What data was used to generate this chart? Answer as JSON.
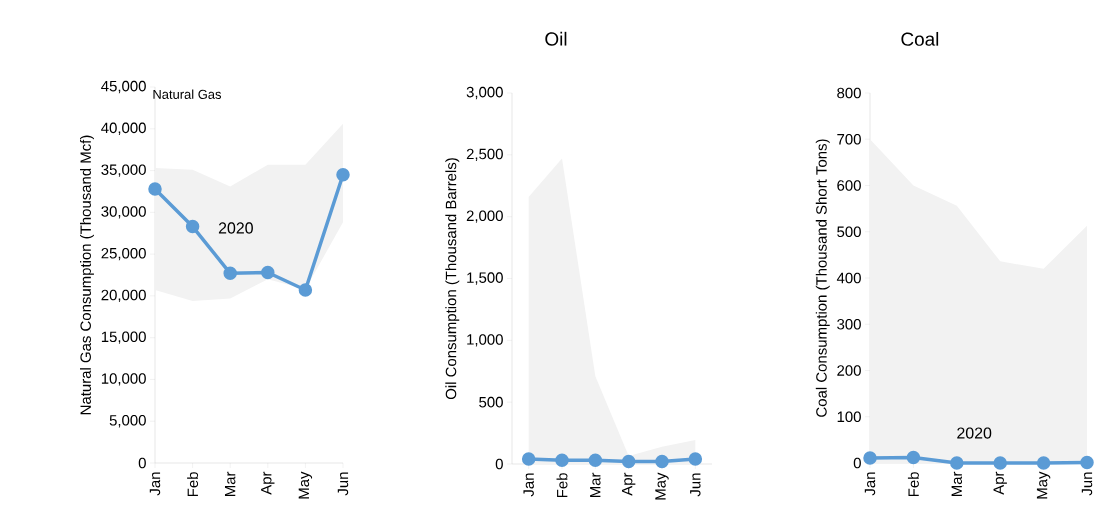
{
  "chart_data": [
    {
      "type": "line",
      "title": "Natural Gas",
      "ylabel": "Natural Gas Consumption (Thousand Mcf)",
      "categories": [
        "Jan",
        "Feb",
        "Mar",
        "Apr",
        "May",
        "Jun"
      ],
      "marker": "circle",
      "ylim": [
        0,
        45000
      ],
      "yticks": [
        {
          "value": 0,
          "label": "0"
        },
        {
          "value": 5000,
          "label": "5,000"
        },
        {
          "value": 10000,
          "label": "10,000"
        },
        {
          "value": 15000,
          "label": "15,000"
        },
        {
          "value": 20000,
          "label": "20,000"
        },
        {
          "value": 25000,
          "label": "25,000"
        },
        {
          "value": 30000,
          "label": "30,000"
        },
        {
          "value": 35000,
          "label": "35,000"
        },
        {
          "value": 40000,
          "label": "40,000"
        },
        {
          "value": 45000,
          "label": "45,000"
        }
      ],
      "series": [
        {
          "name": "2020",
          "color": "#5b9bd5",
          "values": [
            32800,
            28300,
            22700,
            22800,
            20700,
            34500
          ],
          "lower": [
            20700,
            19400,
            19700,
            22000,
            20800,
            28800
          ],
          "upper": [
            35300,
            35100,
            33100,
            35700,
            35700,
            40600
          ]
        }
      ]
    },
    {
      "type": "line",
      "title": "Oil",
      "ylabel": "Oil Consumption (Thousand Barrels)",
      "categories": [
        "Jan",
        "Feb",
        "Mar",
        "Apr",
        "May",
        "Jun"
      ],
      "marker": "circle",
      "ylim": [
        0,
        3000
      ],
      "yticks": [
        {
          "value": 0,
          "label": "0"
        },
        {
          "value": 500,
          "label": "500"
        },
        {
          "value": 1000,
          "label": "1,000"
        },
        {
          "value": 1500,
          "label": "1,500"
        },
        {
          "value": 2000,
          "label": "2,000"
        },
        {
          "value": 2500,
          "label": "2,500"
        },
        {
          "value": 3000,
          "label": "3,000"
        }
      ],
      "series": [
        {
          "color": "#5b9bd5",
          "values": [
            40,
            30,
            30,
            20,
            20,
            40
          ],
          "lower": [
            0,
            0,
            0,
            0,
            0,
            0
          ],
          "upper": [
            2160,
            2470,
            710,
            65,
            140,
            195
          ]
        }
      ]
    },
    {
      "type": "line",
      "title": "Coal",
      "ylabel": "Coal Consumption (Thousand Short Tons)",
      "categories": [
        "Jan",
        "Feb",
        "Mar",
        "Apr",
        "May",
        "Jun"
      ],
      "marker": "circle",
      "ylim": [
        0,
        800
      ],
      "yticks": [
        0,
        100,
        200,
        300,
        400,
        500,
        600,
        700,
        800
      ],
      "series": [
        {
          "name": "2020",
          "color": "#5b9bd5",
          "values": [
            11,
            12,
            0,
            0,
            0,
            1
          ],
          "lower": [
            0,
            0,
            0,
            0,
            0,
            0
          ],
          "upper": [
            700,
            600,
            556,
            436,
            420,
            513
          ]
        }
      ]
    }
  ]
}
